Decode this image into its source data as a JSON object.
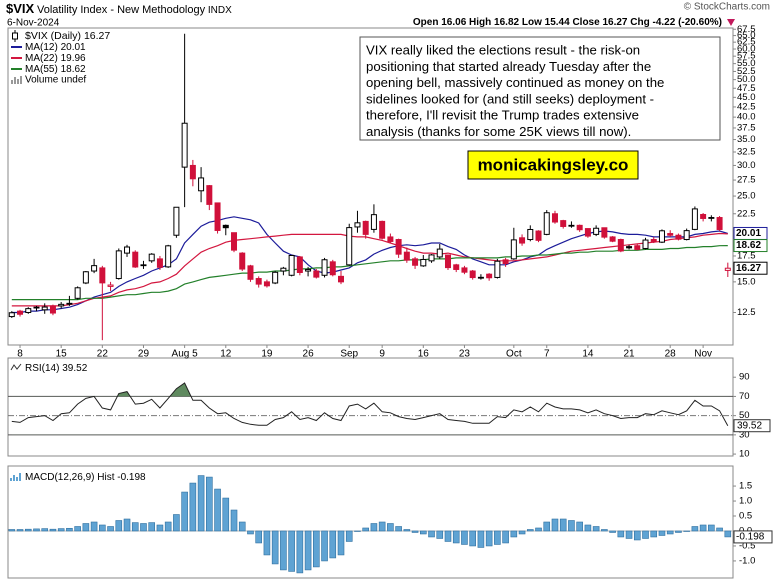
{
  "header": {
    "symbol": "$VIX",
    "title": "Volatility Index - New Methodology",
    "exchange": "INDX",
    "date": "6-Nov-2024",
    "credit": "© StockCharts.com",
    "ohlc_labels": [
      "Open",
      "High",
      "Low",
      "Close"
    ],
    "change_name": "Chg",
    "change_text": "-4.22 (-20.60%)"
  },
  "chart_data": [
    {
      "type": "candlestick",
      "name": "$VIX (Daily)",
      "log_scale": true,
      "up_color": "#000000",
      "down_color": "#d0103a",
      "x": [
        null,
        "8",
        null,
        null,
        null,
        null,
        "15",
        null,
        null,
        null,
        null,
        "22",
        null,
        null,
        null,
        null,
        "29",
        null,
        null,
        null,
        null,
        "Aug 5",
        null,
        null,
        null,
        null,
        "12",
        null,
        null,
        null,
        null,
        "19",
        null,
        null,
        null,
        null,
        "26",
        null,
        null,
        null,
        null,
        "Sep",
        null,
        null,
        null,
        "9",
        null,
        null,
        null,
        null,
        "16",
        null,
        null,
        null,
        null,
        "23",
        null,
        null,
        null,
        null,
        null,
        "Oct",
        null,
        null,
        null,
        "7",
        null,
        null,
        null,
        null,
        "14",
        null,
        null,
        null,
        null,
        "21",
        null,
        null,
        null,
        null,
        "28",
        null,
        null,
        null,
        "Nov",
        null,
        null,
        null
      ],
      "open": [
        12.2,
        12.6,
        12.5,
        12.9,
        12.7,
        13.0,
        13.0,
        13.2,
        13.6,
        14.9,
        16.0,
        16.3,
        14.6,
        15.3,
        17.8,
        17.9,
        16.6,
        17.0,
        17.2,
        16.4,
        19.8,
        29.7,
        30.0,
        25.8,
        26.6,
        24.0,
        21.0,
        20.1,
        17.8,
        16.5,
        15.3,
        15.0,
        14.9,
        16.0,
        15.6,
        17.4,
        16.0,
        16.0,
        15.6,
        16.9,
        15.5,
        16.6,
        20.8,
        21.5,
        20.5,
        21.5,
        19.6,
        19.3,
        17.9,
        17.2,
        16.5,
        17.0,
        17.4,
        17.6,
        16.6,
        16.3,
        16.0,
        15.4,
        15.7,
        15.4,
        17.1,
        17.2,
        19.5,
        19.3,
        20.3,
        19.9,
        22.5,
        21.6,
        21.0,
        21.0,
        20.6,
        19.9,
        20.7,
        19.6,
        19.3,
        18.5,
        18.6,
        18.3,
        19.3,
        19.0,
        20.0,
        19.8,
        19.3,
        20.5,
        22.4,
        22.0,
        22.0,
        16.06
      ],
      "high": [
        12.6,
        12.7,
        12.9,
        13.0,
        13.2,
        13.1,
        13.3,
        13.8,
        14.6,
        16.0,
        17.2,
        16.5,
        15.0,
        18.3,
        18.7,
        18.1,
        17.0,
        17.8,
        17.5,
        18.7,
        23.4,
        65.73,
        31.0,
        29.7,
        26.7,
        24.0,
        21.1,
        20.1,
        17.9,
        16.6,
        15.5,
        15.2,
        16.0,
        16.4,
        17.6,
        17.5,
        16.4,
        16.2,
        17.3,
        17.1,
        16.0,
        21.2,
        22.9,
        21.6,
        23.8,
        21.6,
        20.0,
        19.4,
        18.4,
        17.4,
        17.6,
        17.7,
        18.8,
        17.6,
        16.7,
        16.5,
        16.1,
        15.7,
        15.8,
        17.2,
        17.3,
        20.7,
        19.9,
        21.0,
        20.4,
        23.0,
        22.9,
        21.7,
        21.5,
        21.1,
        20.6,
        21.0,
        20.7,
        19.7,
        19.4,
        18.7,
        18.8,
        19.5,
        19.6,
        20.5,
        20.4,
        20.0,
        20.6,
        23.5,
        22.6,
        22.3,
        22.2,
        16.82
      ],
      "low": [
        12.1,
        12.2,
        12.4,
        12.6,
        12.4,
        12.3,
        12.8,
        13.0,
        13.5,
        14.8,
        15.8,
        10.6,
        14.2,
        15.2,
        17.4,
        16.3,
        16.2,
        16.8,
        16.1,
        16.3,
        19.5,
        23.4,
        26.5,
        24.1,
        23.0,
        20.0,
        19.8,
        17.9,
        16.0,
        15.0,
        14.5,
        14.5,
        14.8,
        15.6,
        15.5,
        15.6,
        15.5,
        15.3,
        15.4,
        15.5,
        14.8,
        16.5,
        20.1,
        19.4,
        20.1,
        19.3,
        18.9,
        17.3,
        16.8,
        16.2,
        16.4,
        16.8,
        17.2,
        16.1,
        15.9,
        15.7,
        15.2,
        15.2,
        15.1,
        15.3,
        16.4,
        17.1,
        18.6,
        19.1,
        19.0,
        19.8,
        21.2,
        20.6,
        20.7,
        20.2,
        19.5,
        19.7,
        19.4,
        19.0,
        17.9,
        18.2,
        18.1,
        18.2,
        18.9,
        18.9,
        19.6,
        19.2,
        19.2,
        20.4,
        21.5,
        21.5,
        20.3,
        15.44
      ],
      "close": [
        12.48,
        12.37,
        12.79,
        12.85,
        12.91,
        12.46,
        13.12,
        13.19,
        14.48,
        15.93,
        16.52,
        14.91,
        14.72,
        18.04,
        18.46,
        16.39,
        16.6,
        17.69,
        16.36,
        18.59,
        23.39,
        38.57,
        27.71,
        27.85,
        23.79,
        20.37,
        20.71,
        18.12,
        16.19,
        15.23,
        14.8,
        14.65,
        15.88,
        16.27,
        17.55,
        15.86,
        16.15,
        15.43,
        17.11,
        15.65,
        15.0,
        20.72,
        21.32,
        19.9,
        22.38,
        19.45,
        19.08,
        17.69,
        17.07,
        16.56,
        17.14,
        17.61,
        18.23,
        16.33,
        16.15,
        15.89,
        15.39,
        15.41,
        15.37,
        16.96,
        16.73,
        19.26,
        18.9,
        20.49,
        19.21,
        22.64,
        21.42,
        20.86,
        20.93,
        20.46,
        19.7,
        20.64,
        19.58,
        19.11,
        18.03,
        18.37,
        18.2,
        19.24,
        19.08,
        20.33,
        19.8,
        19.34,
        20.35,
        23.16,
        21.88,
        21.98,
        20.49,
        16.27
      ],
      "series": [
        {
          "name": "MA(12)",
          "color": "#1c1c9a",
          "values": [
            12.5,
            12.5,
            12.6,
            12.6,
            12.7,
            12.7,
            12.8,
            12.9,
            13.1,
            13.4,
            13.7,
            13.9,
            14.1,
            14.6,
            15.0,
            15.3,
            15.6,
            16.0,
            16.3,
            16.6,
            17.2,
            18.9,
            19.9,
            20.9,
            21.4,
            21.6,
            21.9,
            22.1,
            21.9,
            21.7,
            21.3,
            19.9,
            18.9,
            18.0,
            17.6,
            17.4,
            16.6,
            16.0,
            15.8,
            15.9,
            16.1,
            16.3,
            16.8,
            17.1,
            17.7,
            18.1,
            18.4,
            18.6,
            18.7,
            18.6,
            18.7,
            18.9,
            18.9,
            18.5,
            18.2,
            17.6,
            17.2,
            16.9,
            16.6,
            16.6,
            16.6,
            16.9,
            17.1,
            17.4,
            17.6,
            18.2,
            18.6,
            19.0,
            19.4,
            19.7,
            20.0,
            20.2,
            20.3,
            20.2,
            20.0,
            19.9,
            19.9,
            19.8,
            19.6,
            19.6,
            19.6,
            19.6,
            19.6,
            19.9,
            20.0,
            20.2,
            20.3,
            20.01
          ]
        },
        {
          "name": "MA(22)",
          "color": "#d3173f",
          "values": [
            13.0,
            13.0,
            13.0,
            13.0,
            13.0,
            13.0,
            13.0,
            13.1,
            13.2,
            13.4,
            13.6,
            13.7,
            13.8,
            14.1,
            14.3,
            14.4,
            14.6,
            14.9,
            15.0,
            15.3,
            15.7,
            16.5,
            17.2,
            17.9,
            18.3,
            18.6,
            19.0,
            19.2,
            19.3,
            19.4,
            19.5,
            19.6,
            19.7,
            19.8,
            19.9,
            19.9,
            19.9,
            19.9,
            19.9,
            19.9,
            19.9,
            19.7,
            19.6,
            19.6,
            19.4,
            19.2,
            18.9,
            18.6,
            18.3,
            18.0,
            17.8,
            17.8,
            17.7,
            17.8,
            17.6,
            17.4,
            17.3,
            17.2,
            17.1,
            17.0,
            17.0,
            17.0,
            17.1,
            17.2,
            17.3,
            17.4,
            17.6,
            17.8,
            18.0,
            18.1,
            18.2,
            18.3,
            18.4,
            18.5,
            18.6,
            18.7,
            18.8,
            18.9,
            19.0,
            19.1,
            19.3,
            19.4,
            19.5,
            19.6,
            19.8,
            19.9,
            20.0,
            19.96
          ]
        },
        {
          "name": "MA(55)",
          "color": "#23802a",
          "values": [
            13.5,
            13.5,
            13.5,
            13.5,
            13.5,
            13.5,
            13.5,
            13.5,
            13.5,
            13.6,
            13.6,
            13.6,
            13.7,
            13.8,
            13.9,
            13.9,
            14.0,
            14.1,
            14.1,
            14.2,
            14.4,
            14.8,
            15.0,
            15.2,
            15.4,
            15.5,
            15.6,
            15.7,
            15.8,
            15.8,
            15.9,
            15.9,
            16.0,
            16.0,
            16.1,
            16.2,
            16.2,
            16.3,
            16.3,
            16.4,
            16.4,
            16.5,
            16.6,
            16.7,
            16.8,
            16.9,
            17.0,
            17.0,
            17.1,
            17.1,
            17.1,
            17.2,
            17.2,
            17.2,
            17.3,
            17.3,
            17.3,
            17.3,
            17.3,
            17.3,
            17.4,
            17.4,
            17.5,
            17.5,
            17.6,
            17.6,
            17.7,
            17.8,
            17.8,
            17.9,
            17.9,
            18.0,
            18.0,
            18.0,
            18.1,
            18.1,
            18.1,
            18.2,
            18.2,
            18.2,
            18.3,
            18.3,
            18.4,
            18.4,
            18.5,
            18.5,
            18.6,
            18.62
          ]
        }
      ],
      "volume_label": "Volume undef",
      "ylim": [
        10.3,
        68
      ],
      "yticks": [
        12.5,
        {
          "value": 15,
          "label": "15.0"
        },
        17.5,
        {
          "value": 20,
          "label": "20.0"
        },
        22.5,
        {
          "value": 25,
          "label": "25.0"
        },
        27.5,
        {
          "value": 30,
          "label": "30.0"
        },
        32.5,
        {
          "value": 35,
          "label": "35.0"
        },
        37.5,
        {
          "value": 40,
          "label": "40.0"
        },
        42.5,
        {
          "value": 45,
          "label": "45.0"
        },
        47.5,
        {
          "value": 50,
          "label": "50.0"
        },
        52.5,
        {
          "value": 55,
          "label": "55.0"
        },
        57.5,
        {
          "value": 60,
          "label": "60.0"
        },
        62.5,
        {
          "value": 65,
          "label": "65.0"
        },
        67.5
      ],
      "annotation": [
        "VIX really liked the elections result - the risk-on",
        "positioning that started already Tuesday after the",
        "opening bell, massively continued as money on the",
        "sidelines looked for (and still seeks) deployment -",
        "therefore, I'll revisit the Trump trades extensive",
        "analysis (thanks for some 25K views till now)."
      ],
      "watermark": "monicakingsley.co"
    },
    {
      "type": "line",
      "name": "RSI(14)",
      "color": "#222222",
      "band_color": "#5f8a5f",
      "values": [
        44,
        43,
        48,
        49,
        50,
        45,
        52,
        53,
        62,
        68,
        70,
        58,
        56,
        73,
        75,
        62,
        63,
        67,
        58,
        68,
        78,
        84,
        66,
        66,
        58,
        52,
        53,
        47,
        43,
        41,
        40,
        40,
        46,
        48,
        54,
        46,
        48,
        45,
        53,
        47,
        45,
        60,
        62,
        57,
        63,
        54,
        53,
        49,
        47,
        46,
        48,
        50,
        52,
        46,
        45,
        44,
        42,
        42,
        42,
        49,
        48,
        56,
        54,
        59,
        54,
        63,
        59,
        57,
        57,
        56,
        53,
        56,
        52,
        50,
        47,
        48,
        48,
        52,
        51,
        55,
        53,
        51,
        55,
        66,
        60,
        60,
        55,
        39.52
      ],
      "band": [
        30,
        70
      ],
      "midline": 50,
      "ylim": [
        8,
        110
      ],
      "yticks": [
        90,
        70,
        50,
        30,
        10
      ]
    },
    {
      "type": "bar",
      "name": "MACD(12,26,9) Hist",
      "color": "#5fa3d3",
      "values": [
        0.05,
        0.05,
        0.06,
        0.07,
        0.08,
        0.06,
        0.08,
        0.09,
        0.15,
        0.25,
        0.3,
        0.2,
        0.15,
        0.35,
        0.4,
        0.28,
        0.25,
        0.28,
        0.2,
        0.3,
        0.55,
        1.3,
        1.6,
        1.85,
        1.8,
        1.4,
        1.1,
        0.7,
        0.3,
        -0.1,
        -0.4,
        -0.8,
        -1.1,
        -1.3,
        -1.35,
        -1.4,
        -1.3,
        -1.2,
        -1.0,
        -0.9,
        -0.8,
        -0.35,
        0.0,
        0.1,
        0.25,
        0.3,
        0.25,
        0.15,
        0.05,
        -0.05,
        -0.1,
        -0.2,
        -0.25,
        -0.35,
        -0.4,
        -0.45,
        -0.5,
        -0.55,
        -0.5,
        -0.45,
        -0.4,
        -0.2,
        -0.1,
        0.05,
        0.1,
        0.3,
        0.4,
        0.4,
        0.35,
        0.3,
        0.2,
        0.15,
        0.05,
        -0.05,
        -0.2,
        -0.25,
        -0.3,
        -0.25,
        -0.2,
        -0.15,
        -0.1,
        -0.05,
        0.0,
        0.15,
        0.2,
        0.2,
        0.1,
        -0.198
      ],
      "ylim": [
        -1.57,
        2.17
      ],
      "yticks": [
        1.5,
        {
          "value": 1,
          "label": "1.0"
        },
        0.5,
        {
          "value": 0,
          "label": "0.0"
        },
        -0.5,
        {
          "value": -1,
          "label": "-1.0"
        }
      ]
    }
  ]
}
